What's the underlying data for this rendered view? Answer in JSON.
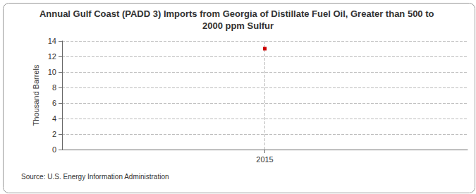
{
  "chart_data": {
    "type": "line",
    "title": "Annual Gulf Coast (PADD 3) Imports from Georgia of Distillate Fuel Oil, Greater than 500 to 2000 ppm Sulfur",
    "y_label": "Thousand Barrels",
    "source": "Source: U.S. Energy Information Administration",
    "categories": [
      "2015"
    ],
    "values": [
      13
    ],
    "color": "#cc0000",
    "marker": "square",
    "ylim": [
      0,
      14
    ],
    "yticks": [
      0,
      2,
      4,
      6,
      8,
      10,
      12,
      14
    ],
    "grid": true
  }
}
